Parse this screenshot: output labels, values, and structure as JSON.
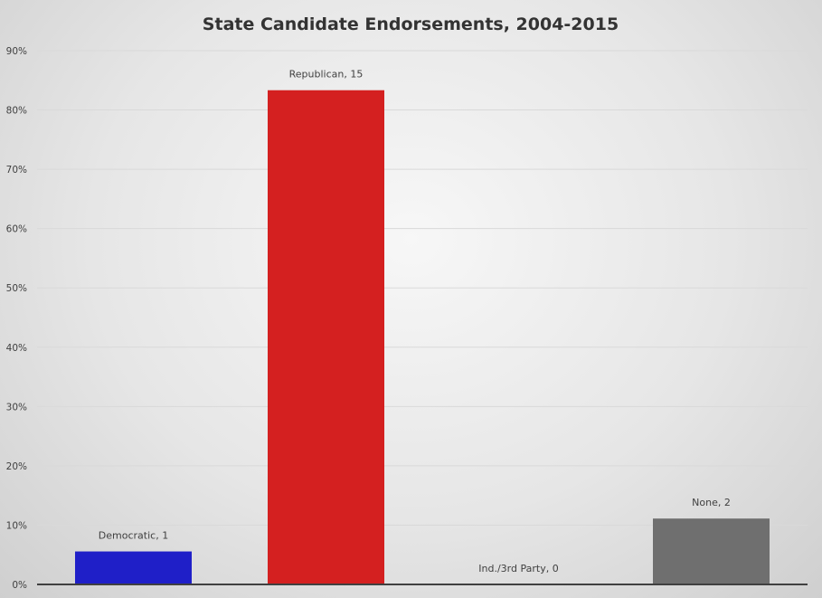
{
  "chart_data": {
    "type": "bar",
    "title": "State Candidate Endorsements, 2004-2015",
    "xlabel": "",
    "ylabel": "",
    "categories": [
      "Democratic",
      "Republican",
      "Ind./3rd Party",
      "None"
    ],
    "counts": [
      1,
      15,
      0,
      2
    ],
    "values": [
      5.56,
      83.33,
      0,
      11.11
    ],
    "data_labels": [
      "Democratic, 1",
      "Republican, 15",
      "Ind./3rd Party, 0",
      "None, 2"
    ],
    "colors": [
      "#1f1fc8",
      "#d42020",
      "#888888",
      "#6f6f6f"
    ],
    "ylim": [
      0,
      90
    ],
    "yticks": [
      0,
      10,
      20,
      30,
      40,
      50,
      60,
      70,
      80,
      90
    ],
    "ytick_labels": [
      "0%",
      "10%",
      "20%",
      "30%",
      "40%",
      "50%",
      "60%",
      "70%",
      "80%",
      "90%"
    ],
    "grid": true,
    "legend": "none"
  }
}
